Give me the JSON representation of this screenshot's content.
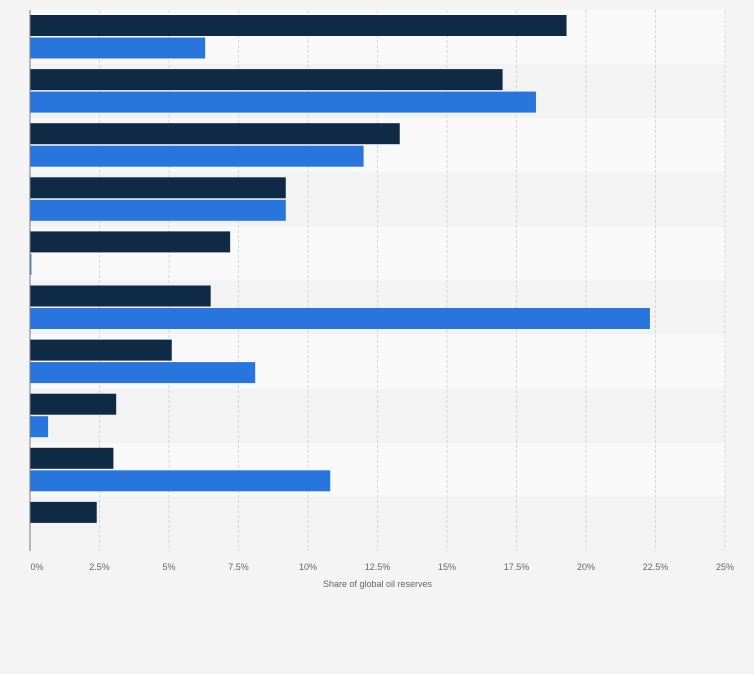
{
  "chart_data": {
    "type": "bar",
    "orientation": "horizontal",
    "title": "",
    "xlabel": "Share of global oil reserves",
    "ylabel": "",
    "xlim": [
      0,
      25
    ],
    "x_ticks": [
      "0%",
      "2.5%",
      "5%",
      "7.5%",
      "10%",
      "12.5%",
      "15%",
      "17.5%",
      "20%",
      "22.5%",
      "25%"
    ],
    "x_tick_values": [
      0,
      2.5,
      5,
      7.5,
      10,
      12.5,
      15,
      17.5,
      20,
      22.5,
      25
    ],
    "grid": true,
    "legend": "none",
    "categories": [
      "",
      "",
      "",
      "",
      "",
      "",
      "",
      "",
      "",
      ""
    ],
    "series": [
      {
        "color": "#0f2a44",
        "values": [
          19.3,
          17.0,
          13.3,
          9.2,
          7.2,
          6.5,
          5.1,
          3.1,
          3.0,
          2.4
        ]
      },
      {
        "color": "#2876dd",
        "values": [
          6.3,
          18.2,
          12.0,
          9.2,
          0.05,
          22.3,
          8.1,
          0.65,
          10.8,
          null
        ]
      }
    ],
    "colors": {
      "background": "#f4f4f4",
      "band_light": "#f9f9f9",
      "band_dark": "#f3f3f3",
      "grid": "#d6d6d6",
      "axis": "#7a7a7a",
      "tick_text": "#666666"
    }
  }
}
